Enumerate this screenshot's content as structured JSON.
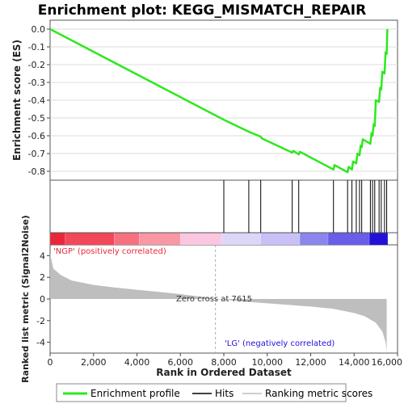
{
  "chart_data": {
    "type": "line",
    "title": "Enrichment plot: KEGG_MISMATCH_REPAIR",
    "xlabel": "Rank in Ordered Dataset",
    "ylabel_top": "Enrichment score (ES)",
    "ylabel_bottom": "Ranked list metric (Signal2Noise)",
    "xlim": [
      0,
      16000
    ],
    "x_ticks": [
      0,
      2000,
      4000,
      6000,
      8000,
      10000,
      12000,
      14000,
      16000
    ],
    "x_tick_labels": [
      "0",
      "2,000",
      "4,000",
      "6,000",
      "8,000",
      "10,000",
      "12,000",
      "14,000",
      "16,000"
    ],
    "es_ylim": [
      -0.85,
      0.05
    ],
    "es_ticks": [
      0.0,
      -0.1,
      -0.2,
      -0.3,
      -0.4,
      -0.5,
      -0.6,
      -0.7,
      -0.8
    ],
    "es_tick_labels": [
      "0.0",
      "-0.1",
      "-0.2",
      "-0.3",
      "-0.4",
      "-0.5",
      "-0.6",
      "-0.7",
      "-0.8"
    ],
    "metric_ylim": [
      -5,
      5
    ],
    "metric_ticks": [
      4,
      2,
      0,
      -2,
      -4
    ],
    "metric_tick_labels": [
      "4",
      "2",
      "0",
      "-2",
      "-4"
    ],
    "n_genes": 15500,
    "enrichment_profile": [
      [
        0,
        0.0
      ],
      [
        8000,
        -0.51
      ],
      [
        9200,
        -0.58
      ],
      [
        9700,
        -0.605
      ],
      [
        9750,
        -0.615
      ],
      [
        11150,
        -0.695
      ],
      [
        11200,
        -0.685
      ],
      [
        11450,
        -0.705
      ],
      [
        11500,
        -0.69
      ],
      [
        13050,
        -0.79
      ],
      [
        13100,
        -0.765
      ],
      [
        13700,
        -0.805
      ],
      [
        13750,
        -0.775
      ],
      [
        13900,
        -0.79
      ],
      [
        13950,
        -0.745
      ],
      [
        14100,
        -0.755
      ],
      [
        14150,
        -0.7
      ],
      [
        14250,
        -0.71
      ],
      [
        14300,
        -0.655
      ],
      [
        14350,
        -0.665
      ],
      [
        14400,
        -0.62
      ],
      [
        14750,
        -0.645
      ],
      [
        14800,
        -0.585
      ],
      [
        14850,
        -0.6
      ],
      [
        14900,
        -0.535
      ],
      [
        14950,
        -0.545
      ],
      [
        15000,
        -0.4
      ],
      [
        15150,
        -0.41
      ],
      [
        15200,
        -0.33
      ],
      [
        15250,
        -0.34
      ],
      [
        15300,
        -0.24
      ],
      [
        15400,
        -0.25
      ],
      [
        15450,
        -0.13
      ],
      [
        15500,
        -0.14
      ],
      [
        15530,
        0.0
      ]
    ],
    "hits": [
      8000,
      9150,
      9700,
      11150,
      11450,
      13050,
      13700,
      13900,
      14100,
      14250,
      14350,
      14750,
      14850,
      14950,
      15150,
      15250,
      15400,
      15500
    ],
    "ranked_metric": [
      [
        0,
        4.2
      ],
      [
        150,
        2.8
      ],
      [
        500,
        2.2
      ],
      [
        1000,
        1.7
      ],
      [
        2000,
        1.3
      ],
      [
        3000,
        1.05
      ],
      [
        4000,
        0.85
      ],
      [
        5000,
        0.65
      ],
      [
        6000,
        0.45
      ],
      [
        7000,
        0.2
      ],
      [
        7615,
        0.0
      ],
      [
        9000,
        -0.25
      ],
      [
        10000,
        -0.4
      ],
      [
        11000,
        -0.55
      ],
      [
        12000,
        -0.7
      ],
      [
        13000,
        -0.9
      ],
      [
        14000,
        -1.3
      ],
      [
        14500,
        -1.6
      ],
      [
        15000,
        -2.2
      ],
      [
        15300,
        -3.0
      ],
      [
        15450,
        -4.0
      ],
      [
        15500,
        -4.8
      ]
    ],
    "heatmap_segments": [
      [
        0,
        700,
        "#e8283a"
      ],
      [
        700,
        2950,
        "#f2485a"
      ],
      [
        2950,
        4100,
        "#f77080"
      ],
      [
        4100,
        6000,
        "#f997a5"
      ],
      [
        6000,
        7900,
        "#fbc6e0"
      ],
      [
        7900,
        9700,
        "#dcd6f8"
      ],
      [
        9700,
        11500,
        "#c8c0f6"
      ],
      [
        11500,
        12800,
        "#8a86ee"
      ],
      [
        12800,
        14700,
        "#6a5ee8"
      ],
      [
        14700,
        15550,
        "#2310d8"
      ]
    ],
    "zero_cross_rank": 7615,
    "annotations": {
      "positive_label": "'NGP' (positively correlated)",
      "negative_label": "'LG' (negatively correlated)",
      "zero_cross_label": "Zero cross at 7615"
    },
    "legend": {
      "placement": "bottom",
      "items": [
        "Enrichment profile",
        "Hits",
        "Ranking metric scores"
      ]
    },
    "colors": {
      "profile": "#2ee81e",
      "hits": "#000000",
      "metric_fill": "#bebebe",
      "positive_text": "#e8283a",
      "negative_text": "#2310d8"
    }
  }
}
